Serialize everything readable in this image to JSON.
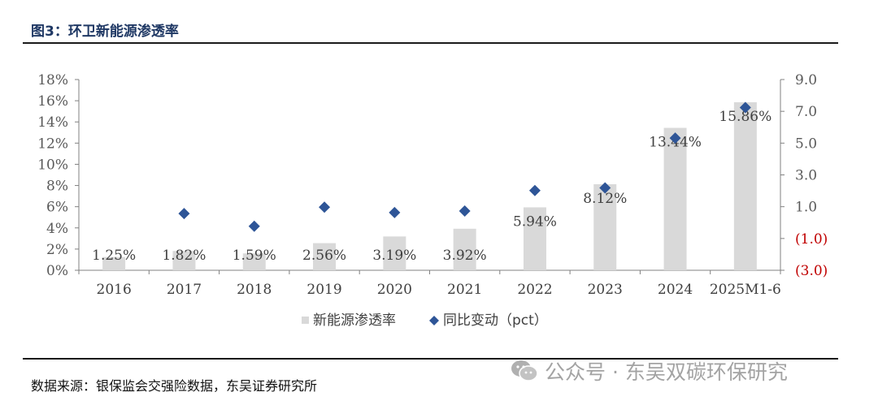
{
  "figure": {
    "title": "图3：环卫新能源渗透率",
    "source": "数据来源：银保监会交强险数据，东吴证券研究所",
    "watermark": "公众号 · 东吴双碳环保研究"
  },
  "colors": {
    "bar": "#d9d9d9",
    "marker": "#2e5597",
    "negative_tick": "#c00000",
    "title": "#1f3864"
  },
  "chart_data": {
    "type": "bar",
    "categories": [
      "2016",
      "2017",
      "2018",
      "2019",
      "2020",
      "2021",
      "2022",
      "2023",
      "2024",
      "2025M1-6"
    ],
    "series": [
      {
        "name": "新能源渗透率",
        "type": "bar",
        "axis": "left",
        "values": [
          1.25,
          1.82,
          1.59,
          2.56,
          3.19,
          3.92,
          5.94,
          8.12,
          13.44,
          15.86
        ],
        "labels": [
          "1.25%",
          "1.82%",
          "1.59%",
          "2.56%",
          "3.19%",
          "3.92%",
          "5.94%",
          "8.12%",
          "13.44%",
          "15.86%"
        ]
      },
      {
        "name": "同比变动（pct）",
        "type": "scatter",
        "marker": "diamond",
        "axis": "right",
        "values": [
          null,
          0.57,
          -0.23,
          0.97,
          0.63,
          0.73,
          2.02,
          2.18,
          5.32,
          7.24
        ]
      }
    ],
    "y_left": {
      "ylim": [
        0,
        18
      ],
      "ticks": [
        0,
        2,
        4,
        6,
        8,
        10,
        12,
        14,
        16,
        18
      ],
      "tick_labels": [
        "0%",
        "2%",
        "4%",
        "6%",
        "8%",
        "10%",
        "12%",
        "14%",
        "16%",
        "18%"
      ]
    },
    "y_right": {
      "ylim": [
        -3,
        9
      ],
      "ticks": [
        -3,
        -1,
        1,
        3,
        5,
        7,
        9
      ],
      "tick_labels": [
        "(3.0)",
        "(1.0)",
        "1.0",
        "3.0",
        "5.0",
        "7.0",
        "9.0"
      ]
    },
    "legend": {
      "position": "bottom",
      "items": [
        "新能源渗透率",
        "同比变动（pct）"
      ]
    },
    "grid": false
  }
}
